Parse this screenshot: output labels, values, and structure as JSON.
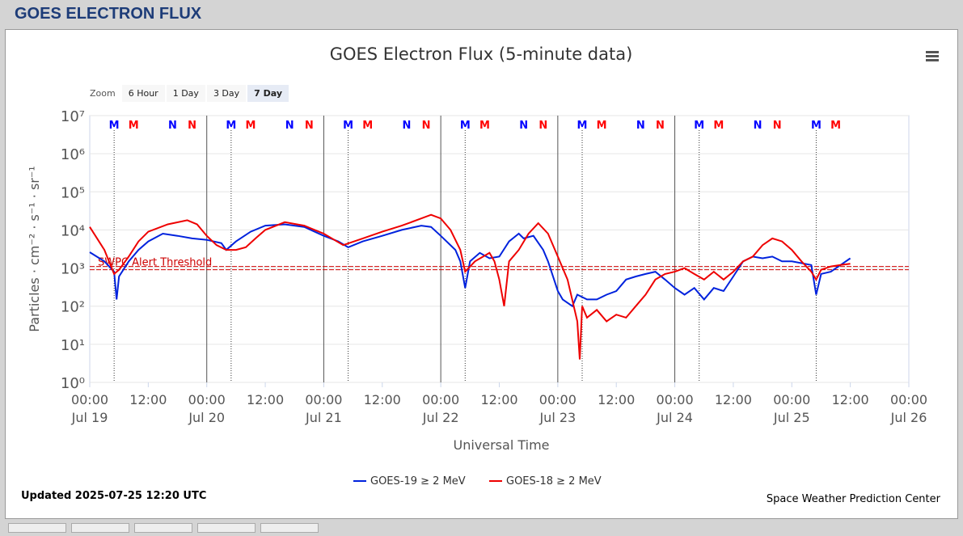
{
  "page_title": "GOES ELECTRON FLUX",
  "zoom": {
    "label": "Zoom",
    "buttons": [
      "6 Hour",
      "1 Day",
      "3 Day",
      "7 Day"
    ],
    "selected": 3
  },
  "footer": {
    "updated": "Updated 2025-07-25 12:20 UTC",
    "credit": "Space Weather Prediction Center"
  },
  "chart_data": {
    "type": "line",
    "title": "GOES Electron Flux (5-minute data)",
    "x_label": "Universal Time",
    "y_label": "Particles · cm⁻² · s⁻¹ · sr⁻¹",
    "log_y": true,
    "grid": true,
    "legend": "bottom",
    "xlim": [
      0,
      168
    ],
    "xticks": [
      {
        "value": 0,
        "label": "00:00\nJul 19"
      },
      {
        "value": 12,
        "label": "12:00"
      },
      {
        "value": 24,
        "label": "00:00\nJul 20"
      },
      {
        "value": 36,
        "label": "12:00"
      },
      {
        "value": 48,
        "label": "00:00\nJul 21"
      },
      {
        "value": 60,
        "label": "12:00"
      },
      {
        "value": 72,
        "label": "00:00\nJul 22"
      },
      {
        "value": 84,
        "label": "12:00"
      },
      {
        "value": 96,
        "label": "00:00\nJul 23"
      },
      {
        "value": 108,
        "label": "12:00"
      },
      {
        "value": 120,
        "label": "00:00\nJul 24"
      },
      {
        "value": 132,
        "label": "12:00"
      },
      {
        "value": 144,
        "label": "00:00\nJul 25"
      },
      {
        "value": 156,
        "label": "12:00"
      },
      {
        "value": 168,
        "label": "00:00\nJul 26"
      }
    ],
    "ylim": [
      1,
      10000000
    ],
    "yticks": [
      {
        "value": 1,
        "label": "10⁰"
      },
      {
        "value": 10,
        "label": "10¹"
      },
      {
        "value": 100,
        "label": "10²"
      },
      {
        "value": 1000,
        "label": "10³"
      },
      {
        "value": 10000,
        "label": "10⁴"
      },
      {
        "value": 100000,
        "label": "10⁵"
      },
      {
        "value": 1000000,
        "label": "10⁶"
      },
      {
        "value": 10000000,
        "label": "10⁷"
      }
    ],
    "day_lines": [
      24,
      48,
      72,
      96,
      120
    ],
    "local_markers": [
      {
        "label": "M",
        "color": "#0000ff",
        "x": [
          5,
          29,
          53,
          77,
          101,
          125,
          149
        ]
      },
      {
        "label": "M",
        "color": "#ff0000",
        "x": [
          9,
          33,
          57,
          81,
          105,
          129,
          153
        ]
      },
      {
        "label": "N",
        "color": "#0000ff",
        "x": [
          17,
          41,
          65,
          89,
          113,
          137
        ]
      },
      {
        "label": "N",
        "color": "#ff0000",
        "x": [
          21,
          45,
          69,
          93,
          117,
          141
        ]
      }
    ],
    "threshold": {
      "value": 1000,
      "label": "SWPC Alert Threshold",
      "color": "#cc0000"
    },
    "series": [
      {
        "name": "GOES-19 ≥ 2 MeV",
        "color": "#0022dd",
        "x": [
          0,
          3,
          5,
          5.5,
          6,
          8,
          10,
          12,
          15,
          18,
          21,
          24,
          27,
          28,
          30,
          33,
          36,
          40,
          44,
          48,
          51,
          53,
          56,
          60,
          64,
          68,
          70,
          72,
          75,
          76,
          77,
          78,
          80,
          82,
          84,
          86,
          88,
          89,
          91,
          93,
          94,
          96,
          97,
          99,
          100,
          102,
          104,
          106,
          108,
          110,
          112,
          114,
          116,
          118,
          120,
          122,
          124,
          126,
          128,
          130,
          132,
          134,
          136,
          138,
          140,
          142,
          144,
          148,
          149,
          150,
          152,
          154,
          156
        ],
        "values": [
          2600,
          1500,
          800,
          150,
          600,
          1500,
          3000,
          5000,
          8000,
          7000,
          6000,
          5500,
          4500,
          3000,
          5000,
          9000,
          13000,
          14000,
          12000,
          7000,
          5000,
          3500,
          5000,
          7000,
          10000,
          13000,
          12000,
          7000,
          3000,
          1500,
          300,
          1500,
          2500,
          1800,
          2000,
          5000,
          8000,
          6000,
          7000,
          3000,
          1500,
          250,
          150,
          100,
          200,
          150,
          150,
          200,
          250,
          500,
          600,
          700,
          800,
          500,
          300,
          200,
          300,
          150,
          300,
          250,
          600,
          1500,
          2000,
          1800,
          2000,
          1500,
          1500,
          1200,
          200,
          700,
          800,
          1200,
          1800
        ]
      },
      {
        "name": "GOES-18 ≥ 2 MeV",
        "color": "#ee0000",
        "x": [
          0,
          3,
          5,
          6,
          8,
          10,
          12,
          16,
          20,
          22,
          24,
          26,
          28,
          30,
          32,
          34,
          36,
          40,
          44,
          48,
          52,
          56,
          60,
          64,
          68,
          70,
          72,
          74,
          76,
          77,
          79,
          82,
          83,
          84,
          85,
          86,
          88,
          90,
          92,
          94,
          96,
          98,
          100,
          100.5,
          101,
          102,
          104,
          106,
          108,
          110,
          112,
          114,
          116,
          118,
          120,
          122,
          124,
          126,
          128,
          130,
          132,
          134,
          136,
          138,
          140,
          142,
          144,
          146,
          148,
          149,
          150,
          152,
          154,
          156
        ],
        "values": [
          12000,
          3000,
          700,
          900,
          2000,
          5000,
          9000,
          14000,
          18000,
          14000,
          7000,
          4000,
          3000,
          3000,
          3500,
          6000,
          10000,
          16000,
          13000,
          8000,
          4000,
          6000,
          9000,
          13000,
          20000,
          25000,
          20000,
          10000,
          3000,
          800,
          1500,
          2500,
          1500,
          500,
          100,
          1500,
          3000,
          8000,
          15000,
          8000,
          2000,
          500,
          40,
          4,
          100,
          50,
          80,
          40,
          60,
          50,
          100,
          200,
          500,
          700,
          800,
          1000,
          700,
          500,
          800,
          500,
          800,
          1500,
          2000,
          4000,
          6000,
          5000,
          3000,
          1500,
          800,
          500,
          900,
          1100,
          1200,
          1300
        ]
      }
    ]
  }
}
